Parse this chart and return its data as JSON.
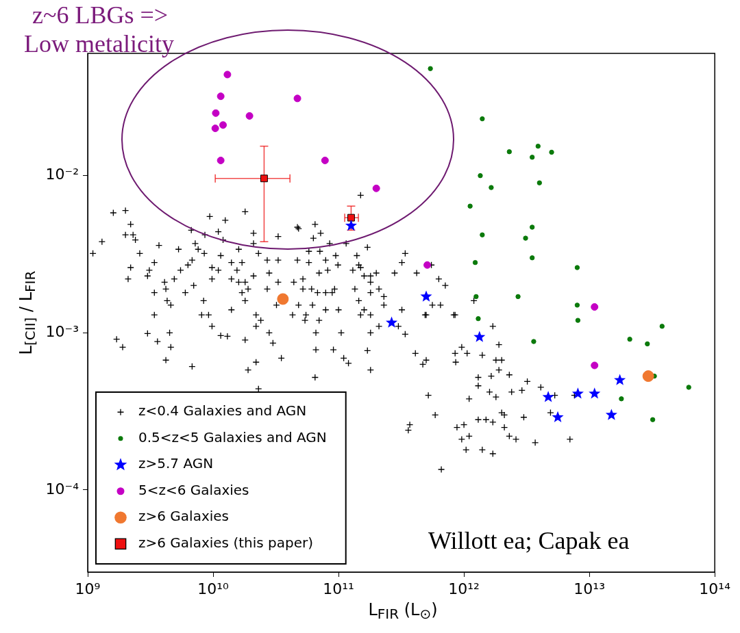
{
  "chart_data": {
    "type": "scatter",
    "xlabel": "L$_{FIR}$ (L$_{⊙}$)",
    "ylabel": "L$_{[CII]}$ / L$_{FIR}$",
    "annotations": [
      "z~6 LBGs =>",
      "Low metalicity",
      "Willott ea; Capak ea"
    ],
    "log": "xy",
    "grid": false,
    "legend": "bottom left",
    "xlim": [
      1000000000.0,
      100000000000000.0
    ],
    "ylim": [
      3e-05,
      0.06
    ],
    "xticks": [
      {
        "value": 1000000000.0,
        "label": "10⁹"
      },
      {
        "value": 10000000000.0,
        "label": "10¹⁰"
      },
      {
        "value": 100000000000.0,
        "label": "10¹¹"
      },
      {
        "value": 1000000000000.0,
        "label": "10¹²"
      },
      {
        "value": 10000000000000.0,
        "label": "10¹³"
      },
      {
        "value": 100000000000000.0,
        "label": "10¹⁴"
      }
    ],
    "yticks": [
      {
        "value": 0.0001,
        "label": "10⁻⁴"
      },
      {
        "value": 0.001,
        "label": "10⁻³"
      },
      {
        "value": 0.01,
        "label": "10⁻²"
      }
    ],
    "series": [
      {
        "name": "z<0.4 Galaxies and AGN",
        "marker": "cross",
        "color": "#000000",
        "x": [
          1600000000.0,
          2000000000.0,
          2200000000.0,
          2000000000.0,
          2300000000.0,
          2400000000.0,
          1300000000.0,
          1100000000.0,
          2600000000.0,
          3700000000.0,
          3400000000.0,
          2200000000.0,
          2100000000.0,
          3100000000.0,
          3000000000.0,
          4100000000.0,
          4900000000.0,
          4200000000.0,
          3400000000.0,
          4300000000.0,
          4600000000.0,
          3400000000.0,
          5500000000.0,
          5300000000.0,
          6300000000.0,
          6800000000.0,
          7200000000.0,
          7600000000.0,
          8500000000.0,
          6700000000.0,
          8600000000.0,
          9400000000.0,
          11000000000.0,
          12500000000.0,
          12000000000.0,
          11500000000.0,
          9800000000.0,
          11000000000.0,
          9800000000.0,
          7000000000.0,
          6000000000.0,
          8400000000.0,
          8100000000.0,
          9200000000.0,
          14000000000.0,
          15500000000.0,
          14000000000.0,
          16000000000.0,
          18000000000.0,
          19000000000.0,
          17000000000.0,
          18000000000.0,
          14000000000.0,
          17000000000.0,
          16000000000.0,
          18000000000.0,
          21000000000.0,
          21000000000.0,
          23000000000.0,
          27000000000.0,
          28000000000.0,
          33000000000.0,
          33000000000.0,
          33000000000.0,
          44000000000.0,
          47000000000.0,
          43000000000.0,
          47000000000.0,
          22000000000.0,
          32000000000.0,
          27000000000.0,
          21000000000.0,
          150000000000.0,
          48000000000.0,
          65000000000.0,
          72000000000.0,
          63000000000.0,
          85000000000.0,
          115000000000.0,
          170000000000.0,
          58000000000.0,
          71000000000.0,
          79000000000.0,
          95000000000.0,
          99000000000.0,
          82000000000.0,
          58000000000.0,
          70000000000.0,
          52000000000.0,
          52000000000.0,
          61000000000.0,
          68000000000.0,
          79000000000.0,
          89000000000.0,
          93000000000.0,
          140000000000.0,
          145000000000.0,
          130000000000.0,
          150000000000.0,
          160000000000.0,
          180000000000.0,
          200000000000.0,
          180000000000.0,
          180000000000.0,
          135000000000.0,
          210000000000.0,
          230000000000.0,
          230000000000.0,
          145000000000.0,
          160000000000.0,
          180000000000.0,
          280000000000.0,
          320000000000.0,
          340000000000.0,
          420000000000.0,
          550000000000.0,
          630000000000.0,
          710000000000.0,
          560000000000.0,
          650000000000.0,
          500000000000.0,
          320000000000.0,
          100000000000.0,
          79000000000.0,
          62000000000.0,
          48000000000.0,
          850000000000.0,
          1200000000000.0,
          55000000000.0,
          54000000000.0,
          70000000000.0,
          66000000000.0,
          105000000000.0,
          66000000000.0,
          91000000000.0,
          110000000000.0,
          120000000000.0,
          170000000000.0,
          180000000000.0,
          210000000000.0,
          180000000000.0,
          65000000000.0,
          300000000000.0,
          340000000000.0,
          410000000000.0,
          500000000000.0,
          470000000000.0,
          850000000000.0,
          960000000000.0,
          1060000000000.0,
          860000000000.0,
          1400000000000.0,
          1700000000000.0,
          1900000000000.0,
          1800000000000.0,
          1900000000000.0,
          1650000000000.0,
          1300000000000.0,
          1300000000000.0,
          1100000000000.0,
          1600000000000.0,
          1800000000000.0,
          2000000000000.0,
          1300000000000.0,
          1500000000000.0,
          1700000000000.0,
          880000000000.0,
          1000000000000.0,
          960000000000.0,
          1100000000000.0,
          1040000000000.0,
          1400000000000.0,
          1700000000000.0,
          660000000000.0,
          520000000000.0,
          590000000000.0,
          370000000000.0,
          360000000000.0,
          490000000000.0,
          830000000000.0,
          150000000000.0,
          1700000000.0,
          1900000000.0,
          3000000000.0,
          3600000000.0,
          4500000000.0,
          4600000000.0,
          4200000000.0,
          6800000000.0,
          9800000000.0,
          11500000000.0,
          13000000000.0,
          18000000000.0,
          22000000000.0,
          24000000000.0,
          28000000000.0,
          30000000000.0,
          35000000000.0,
          22000000000.0,
          19000000000.0,
          23000000000.0,
          2000000000000.0,
          2300000000000.0,
          3200000000000.0,
          2900000000000.0,
          2400000000000.0,
          4100000000000.0,
          5300000000000.0,
          7600000000000.0,
          2100000000000.0,
          3000000000000.0,
          4900000000000.0,
          2100000000000.0,
          2300000000000.0,
          2600000000000.0,
          3700000000000.0,
          7000000000000.0
        ],
        "values": [
          0.0058,
          0.006,
          0.0049,
          0.0042,
          0.0042,
          0.0039,
          0.0038,
          0.0032,
          0.0032,
          0.0036,
          0.0028,
          0.0026,
          0.0022,
          0.0025,
          0.0023,
          0.0021,
          0.0022,
          0.0019,
          0.0018,
          0.0016,
          0.0015,
          0.0013,
          0.0025,
          0.0034,
          0.0027,
          0.0029,
          0.0037,
          0.0034,
          0.0032,
          0.0045,
          0.0042,
          0.0055,
          0.0044,
          0.0052,
          0.0039,
          0.0031,
          0.0026,
          0.0025,
          0.0022,
          0.002,
          0.0018,
          0.0016,
          0.0013,
          0.0013,
          0.0028,
          0.0025,
          0.0022,
          0.0021,
          0.0021,
          0.0019,
          0.0018,
          0.0016,
          0.0014,
          0.0028,
          0.0034,
          0.0059,
          0.0043,
          0.0037,
          0.0032,
          0.0029,
          0.0024,
          0.0041,
          0.0029,
          0.0021,
          0.0021,
          0.0029,
          0.0013,
          0.0047,
          0.0013,
          0.0015,
          0.0019,
          0.0023,
          0.0075,
          0.0046,
          0.0049,
          0.0043,
          0.004,
          0.0037,
          0.0037,
          0.0035,
          0.0033,
          0.0033,
          0.0029,
          0.0031,
          0.0027,
          0.0025,
          0.0028,
          0.0024,
          0.0022,
          0.0019,
          0.0019,
          0.0018,
          0.0018,
          0.0018,
          0.0019,
          0.0031,
          0.0027,
          0.0025,
          0.0026,
          0.0023,
          0.0023,
          0.0024,
          0.0021,
          0.0018,
          0.0019,
          0.0019,
          0.0017,
          0.0015,
          0.0016,
          0.0014,
          0.0013,
          0.0024,
          0.0028,
          0.0032,
          0.0024,
          0.0027,
          0.0022,
          0.002,
          0.0015,
          0.0015,
          0.0013,
          0.0014,
          0.0014,
          0.0014,
          0.0015,
          0.0015,
          0.0013,
          0.0016,
          0.0013,
          0.0012,
          0.0012,
          0.001,
          0.001,
          0.00078,
          0.00078,
          0.00069,
          0.00064,
          0.00077,
          0.001,
          0.0011,
          0.00058,
          0.00052,
          0.0011,
          0.00098,
          0.00074,
          0.00067,
          0.00063,
          0.00074,
          0.00081,
          0.00074,
          0.00065,
          0.00072,
          0.0011,
          0.00084,
          0.00067,
          0.00058,
          0.00053,
          0.00052,
          0.00046,
          0.00038,
          0.00042,
          0.00039,
          0.00031,
          0.00028,
          0.00028,
          0.00027,
          0.00025,
          0.00026,
          0.00021,
          0.00022,
          0.00018,
          0.00018,
          0.00017,
          0.000135,
          0.0004,
          0.0003,
          0.00026,
          0.00024,
          0.0013,
          0.0013,
          0.0013,
          0.00091,
          0.00081,
          0.00099,
          0.00088,
          0.001,
          0.00081,
          0.00067,
          0.00061,
          0.0011,
          0.00096,
          0.00095,
          0.0009,
          0.0011,
          0.0012,
          0.001,
          0.00086,
          0.00069,
          0.00065,
          0.00058,
          0.00044,
          0.00067,
          0.00054,
          0.00049,
          0.00043,
          0.00042,
          0.00045,
          0.0004,
          0.0004,
          0.0003,
          0.00029,
          0.00031,
          0.00025,
          0.00022,
          0.00021,
          0.0002,
          0.00021
        ]
      },
      {
        "name": "0.5<z<5 Galaxies and AGN",
        "marker": "circle",
        "color": "#0b7a0b",
        "x": [
          540000000000.0,
          1400000000000.0,
          2300000000000.0,
          3900000000000.0,
          5000000000000.0,
          3500000000000.0,
          4000000000000.0,
          1350000000000.0,
          1650000000000.0,
          1120000000000.0,
          3500000000000.0,
          1400000000000.0,
          3100000000000.0,
          8000000000000.0,
          1230000000000.0,
          3500000000000.0,
          2700000000000.0,
          1250000000000.0,
          8000000000000.0,
          8100000000000.0,
          1300000000000.0,
          3600000000000.0,
          38000000000000.0,
          21000000000000.0,
          29000000000000.0,
          33000000000000.0,
          62000000000000.0,
          18000000000000.0,
          32000000000000.0
        ],
        "values": [
          0.048,
          0.023,
          0.0142,
          0.0154,
          0.0141,
          0.0131,
          0.009,
          0.01,
          0.0084,
          0.0064,
          0.0047,
          0.0042,
          0.004,
          0.0026,
          0.0028,
          0.003,
          0.0017,
          0.0017,
          0.0015,
          0.0012,
          0.00123,
          0.00088,
          0.0011,
          0.00091,
          0.00085,
          0.00053,
          0.00045,
          0.00038,
          0.00028
        ]
      },
      {
        "name": "z>5.7 AGN",
        "marker": "star",
        "color": "#0000ff",
        "x": [
          126000000000.0,
          500000000000.0,
          265000000000.0,
          1330000000000.0,
          4700000000000.0,
          5600000000000.0,
          8100000000000.0,
          11000000000000.0,
          17500000000000.0,
          15000000000000.0
        ],
        "values": [
          0.0048,
          0.0017,
          0.00116,
          0.00094,
          0.00039,
          0.00029,
          0.00041,
          0.00041,
          0.0005,
          0.0003
        ]
      },
      {
        "name": "5<z<6 Galaxies",
        "marker": "circle",
        "color": "#c400c4",
        "x": [
          13000000000.0,
          11500000000.0,
          10500000000.0,
          12000000000.0,
          10400000000.0,
          19500000000.0,
          11500000000.0,
          47000000000.0,
          78000000000.0,
          200000000000.0,
          510000000000.0,
          11000000000000.0,
          11000000000000.0
        ],
        "values": [
          0.044,
          0.032,
          0.025,
          0.021,
          0.02,
          0.024,
          0.0125,
          0.031,
          0.0125,
          0.0083,
          0.0027,
          0.00146,
          0.00062
        ]
      },
      {
        "name": "z>6 Galaxies",
        "marker": "circle",
        "color": "#f07830",
        "x": [
          36000000000.0,
          29500000000000.0
        ],
        "values": [
          0.00164,
          0.00053
        ]
      },
      {
        "name": "z>6 Galaxies (this paper)",
        "marker": "square",
        "color": "#ee1111",
        "x": [
          25500000000.0,
          126000000000.0
        ],
        "values": [
          0.0096,
          0.0054
        ],
        "xerrors": [
          [
            10400000000.0,
            41000000000.0
          ],
          [
            112000000000.0,
            144000000000.0
          ]
        ],
        "errors": [
          [
            0.0038,
            0.0154
          ],
          [
            0.0045,
            0.0064
          ]
        ]
      }
    ]
  }
}
